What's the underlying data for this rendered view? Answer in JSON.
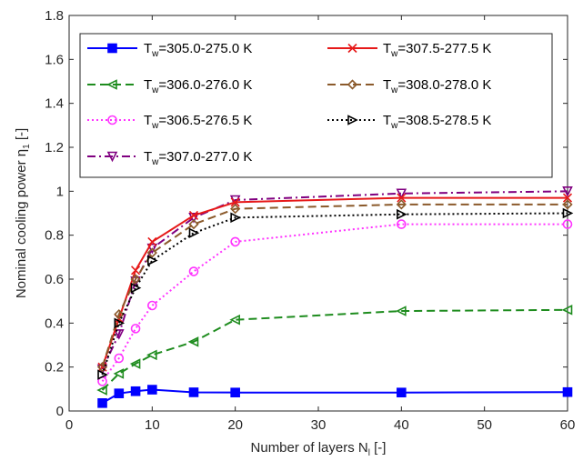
{
  "chart_data": {
    "type": "line",
    "xlabel": "Number of layers N",
    "xlabel_sub": "l",
    "xlabel_suffix": " [-]",
    "ylabel": "Nominal cooling power η",
    "ylabel_sub": "1",
    "ylabel_suffix": " [-]",
    "xlim": [
      0,
      60
    ],
    "ylim": [
      0,
      1.8
    ],
    "xticks": [
      "0",
      "10",
      "20",
      "30",
      "40",
      "50",
      "60"
    ],
    "yticks": [
      "0",
      "0.2",
      "0.4",
      "0.6",
      "0.8",
      "1",
      "1.2",
      "1.4",
      "1.6",
      "1.8"
    ],
    "grid": false,
    "legend_position": "top-left",
    "x": [
      4,
      6,
      8,
      10,
      15,
      20,
      40,
      60
    ],
    "series": [
      {
        "name_prefix": "T",
        "name_sub": "w",
        "name_suffix": "=305.0-275.0 K",
        "color": "#0000ff",
        "dash": "solid",
        "marker": "square",
        "values": [
          0.036,
          0.08,
          0.09,
          0.097,
          0.085,
          0.084,
          0.084,
          0.086
        ]
      },
      {
        "name_prefix": "T",
        "name_sub": "w",
        "name_suffix": "=306.0-276.0 K",
        "color": "#1e8c1e",
        "dash": "dashed",
        "marker": "triangle-left",
        "values": [
          0.095,
          0.17,
          0.215,
          0.255,
          0.315,
          0.415,
          0.455,
          0.46
        ]
      },
      {
        "name_prefix": "T",
        "name_sub": "w",
        "name_suffix": "=306.5-276.5 K",
        "color": "#ff33ff",
        "dash": "dotted",
        "marker": "circle",
        "values": [
          0.135,
          0.24,
          0.375,
          0.48,
          0.635,
          0.77,
          0.85,
          0.85
        ]
      },
      {
        "name_prefix": "T",
        "name_sub": "w",
        "name_suffix": "=307.0-277.0 K",
        "color": "#800080",
        "dash": "dashdot",
        "marker": "triangle-down",
        "values": [
          0.19,
          0.35,
          0.59,
          0.74,
          0.88,
          0.96,
          0.99,
          1.0
        ]
      },
      {
        "name_prefix": "T",
        "name_sub": "w",
        "name_suffix": "=307.5-277.5 K",
        "color": "#e61919",
        "dash": "solid",
        "marker": "x",
        "values": [
          0.2,
          0.42,
          0.64,
          0.77,
          0.89,
          0.95,
          0.97,
          0.97
        ]
      },
      {
        "name_prefix": "T",
        "name_sub": "w",
        "name_suffix": "=308.0-278.0 K",
        "color": "#8b5a2b",
        "dash": "dashed",
        "marker": "diamond",
        "values": [
          0.2,
          0.44,
          0.6,
          0.72,
          0.85,
          0.92,
          0.94,
          0.94
        ]
      },
      {
        "name_prefix": "T",
        "name_sub": "w",
        "name_suffix": "=308.5-278.5 K",
        "color": "#000000",
        "dash": "dotted",
        "marker": "triangle-right",
        "values": [
          0.165,
          0.4,
          0.56,
          0.685,
          0.81,
          0.88,
          0.895,
          0.9
        ]
      }
    ]
  }
}
